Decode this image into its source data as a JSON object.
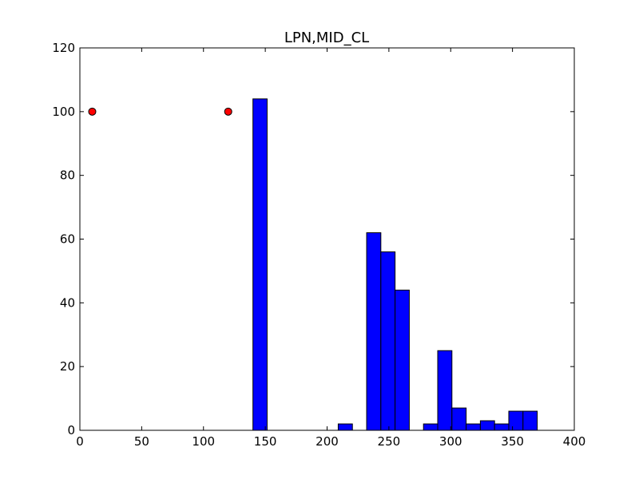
{
  "chart_data": {
    "type": "bar",
    "title": "LPN,MID_CL",
    "xlabel": "",
    "ylabel": "",
    "xlim": [
      0,
      400
    ],
    "ylim": [
      0,
      120
    ],
    "xticks": [
      0,
      50,
      100,
      150,
      200,
      250,
      300,
      350,
      400
    ],
    "yticks": [
      0,
      20,
      40,
      60,
      80,
      100,
      120
    ],
    "grid": false,
    "bar_color": "#0000ff",
    "bar_edge_color": "#000000",
    "marker_color": "#ff0000",
    "bins": [
      {
        "x0": 140.0,
        "x1": 151.5,
        "count": 104
      },
      {
        "x0": 151.5,
        "x1": 163.0,
        "count": 0
      },
      {
        "x0": 163.0,
        "x1": 174.5,
        "count": 0
      },
      {
        "x0": 174.5,
        "x1": 186.0,
        "count": 0
      },
      {
        "x0": 186.0,
        "x1": 197.5,
        "count": 0
      },
      {
        "x0": 197.5,
        "x1": 209.0,
        "count": 0
      },
      {
        "x0": 209.0,
        "x1": 220.5,
        "count": 2
      },
      {
        "x0": 220.5,
        "x1": 232.0,
        "count": 0
      },
      {
        "x0": 232.0,
        "x1": 243.5,
        "count": 62
      },
      {
        "x0": 243.5,
        "x1": 255.0,
        "count": 56
      },
      {
        "x0": 255.0,
        "x1": 266.5,
        "count": 44
      },
      {
        "x0": 266.5,
        "x1": 278.0,
        "count": 0
      },
      {
        "x0": 278.0,
        "x1": 289.5,
        "count": 2
      },
      {
        "x0": 289.5,
        "x1": 301.0,
        "count": 25
      },
      {
        "x0": 301.0,
        "x1": 312.5,
        "count": 7
      },
      {
        "x0": 312.5,
        "x1": 324.0,
        "count": 2
      },
      {
        "x0": 324.0,
        "x1": 335.5,
        "count": 3
      },
      {
        "x0": 335.5,
        "x1": 347.0,
        "count": 2
      },
      {
        "x0": 347.0,
        "x1": 358.5,
        "count": 6
      },
      {
        "x0": 358.5,
        "x1": 370.0,
        "count": 6
      }
    ],
    "points": [
      {
        "x": 10,
        "y": 100
      },
      {
        "x": 120,
        "y": 100
      }
    ]
  }
}
